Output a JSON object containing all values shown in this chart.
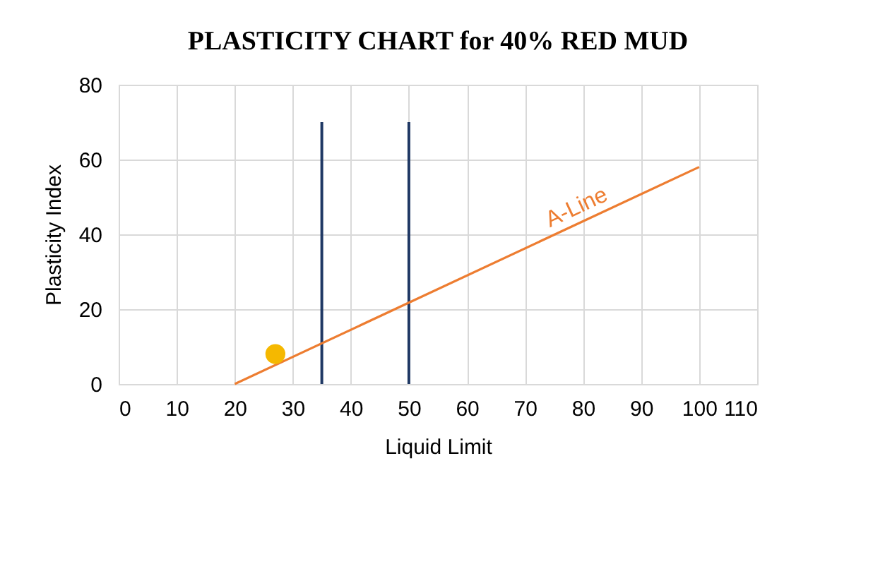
{
  "chart_data": {
    "type": "line",
    "title": "PLASTICITY CHART for 40% RED MUD",
    "xlabel": "Liquid Limit",
    "ylabel": "Plasticity Index",
    "xlim": [
      0,
      110
    ],
    "xticks": [
      0,
      10,
      20,
      30,
      40,
      50,
      60,
      70,
      80,
      90,
      100,
      110
    ],
    "ylim": [
      0,
      80
    ],
    "yticks": [
      0,
      20,
      40,
      60,
      80
    ],
    "grid": true,
    "line_style": "solid",
    "series": [
      {
        "color": "#1f3864",
        "x": [
          35,
          35
        ],
        "values": [
          0,
          70
        ]
      },
      {
        "color": "#1f3864",
        "x": [
          50,
          50
        ],
        "values": [
          0,
          70
        ]
      },
      {
        "name": "A-Line",
        "color": "#ed7d31",
        "x": [
          20,
          100
        ],
        "values": [
          0,
          58
        ]
      },
      {
        "type": "scatter",
        "color": "#f5b800",
        "marker": "circle",
        "x": [
          27
        ],
        "values": [
          8
        ]
      }
    ]
  }
}
